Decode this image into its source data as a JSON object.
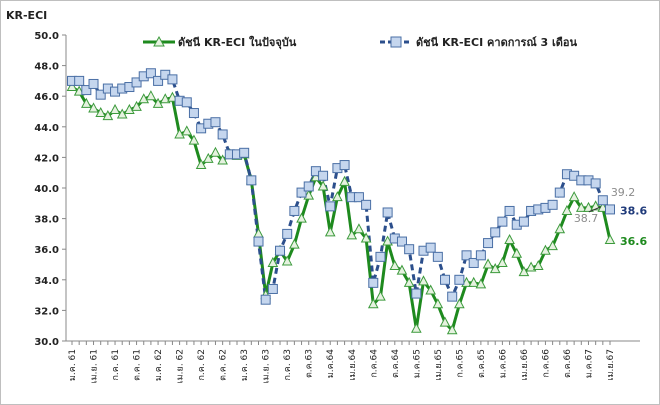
{
  "chart_data": {
    "type": "line",
    "title": "",
    "ylabel": "KR-ECI",
    "xlabel": "",
    "ylim": [
      30,
      50
    ],
    "yticks": [
      "30.0",
      "32.0",
      "34.0",
      "36.0",
      "38.0",
      "40.0",
      "42.0",
      "44.0",
      "46.0",
      "48.0",
      "50.0"
    ],
    "grid": false,
    "legend_position": "top",
    "x_tick_labels": [
      "ม.ค. 61",
      "เม.ย. 61",
      "ก.ค. 61",
      "ต.ค. 61",
      "ม.ค. 62",
      "เม.ย. 62",
      "ก.ค. 62",
      "ต.ค. 62",
      "ม.ค. 63",
      "เม.ย. 63",
      "ก.ค. 63",
      "ต.ค.63",
      "ม.ค.64",
      "เม.ย.64",
      "ก.ค.64",
      "ต.ค.64",
      "ม.ค.65",
      "เม.ย.65",
      "ก.ค.65",
      "ต.ค.65",
      "ม.ค.66",
      "เม.ย.66",
      "ก.ค.66",
      "ต.ค.66",
      "ม.ค.67",
      "เม.ย.67"
    ],
    "x_tick_every_months": 3,
    "series": [
      {
        "name": "ดัชนี KR-ECI ในปัจจุบัน",
        "color": "#1e8a1e",
        "marker": "triangle",
        "style": "solid",
        "values": [
          46.6,
          46.3,
          45.5,
          45.2,
          44.9,
          44.7,
          45.1,
          44.8,
          45.1,
          45.3,
          45.8,
          46.0,
          45.5,
          45.8,
          45.9,
          43.5,
          43.7,
          43.1,
          41.5,
          41.9,
          42.3,
          41.8,
          42.2,
          42.1,
          42.2,
          40.5,
          37.0,
          33.0,
          35.1,
          35.9,
          35.2,
          36.3,
          38.0,
          39.5,
          40.7,
          40.1,
          37.1,
          39.4,
          40.4,
          36.9,
          37.3,
          36.7,
          32.4,
          32.9,
          36.5,
          34.9,
          34.6,
          33.8,
          30.8,
          33.9,
          33.3,
          32.4,
          31.2,
          30.7,
          32.4,
          33.8,
          33.8,
          33.7,
          35.0,
          34.7,
          35.1,
          36.6,
          35.7,
          34.5,
          34.8,
          34.9,
          35.9,
          36.2,
          37.3,
          38.5,
          39.4,
          38.7,
          38.7,
          38.8,
          38.7,
          36.6
        ]
      },
      {
        "name": "ดัชนี KR-ECI คาดการณ์ 3 เดือน",
        "color": "#2c4f8c",
        "marker": "square",
        "style": "dashed",
        "values": [
          47.0,
          47.0,
          46.4,
          46.8,
          46.1,
          46.5,
          46.3,
          46.5,
          46.6,
          46.9,
          47.3,
          47.5,
          47.0,
          47.4,
          47.1,
          45.7,
          45.6,
          44.9,
          43.9,
          44.2,
          44.3,
          43.5,
          42.2,
          42.2,
          42.3,
          40.5,
          36.5,
          32.7,
          33.4,
          35.9,
          37.0,
          38.5,
          39.7,
          40.1,
          41.1,
          40.8,
          38.8,
          41.3,
          41.5,
          39.4,
          39.4,
          38.9,
          33.8,
          35.5,
          38.4,
          36.7,
          36.5,
          36.0,
          33.1,
          35.9,
          36.1,
          35.5,
          34.0,
          32.9,
          34.0,
          35.6,
          35.1,
          35.6,
          36.4,
          37.1,
          37.8,
          38.5,
          37.6,
          37.8,
          38.5,
          38.6,
          38.7,
          38.9,
          39.7,
          40.9,
          40.8,
          40.5,
          40.5,
          40.3,
          39.2,
          38.6
        ]
      }
    ],
    "annotations": [
      {
        "text": "39.2",
        "series": 1,
        "index": 74,
        "color": "#8c8c8c"
      },
      {
        "text": "38.6",
        "series": 1,
        "index": 75,
        "color": "#1f3a7a"
      },
      {
        "text": "38.7",
        "series": 0,
        "index": 74,
        "color": "#8c8c8c"
      },
      {
        "text": "36.6",
        "series": 0,
        "index": 75,
        "color": "#1e8a1e"
      }
    ]
  }
}
